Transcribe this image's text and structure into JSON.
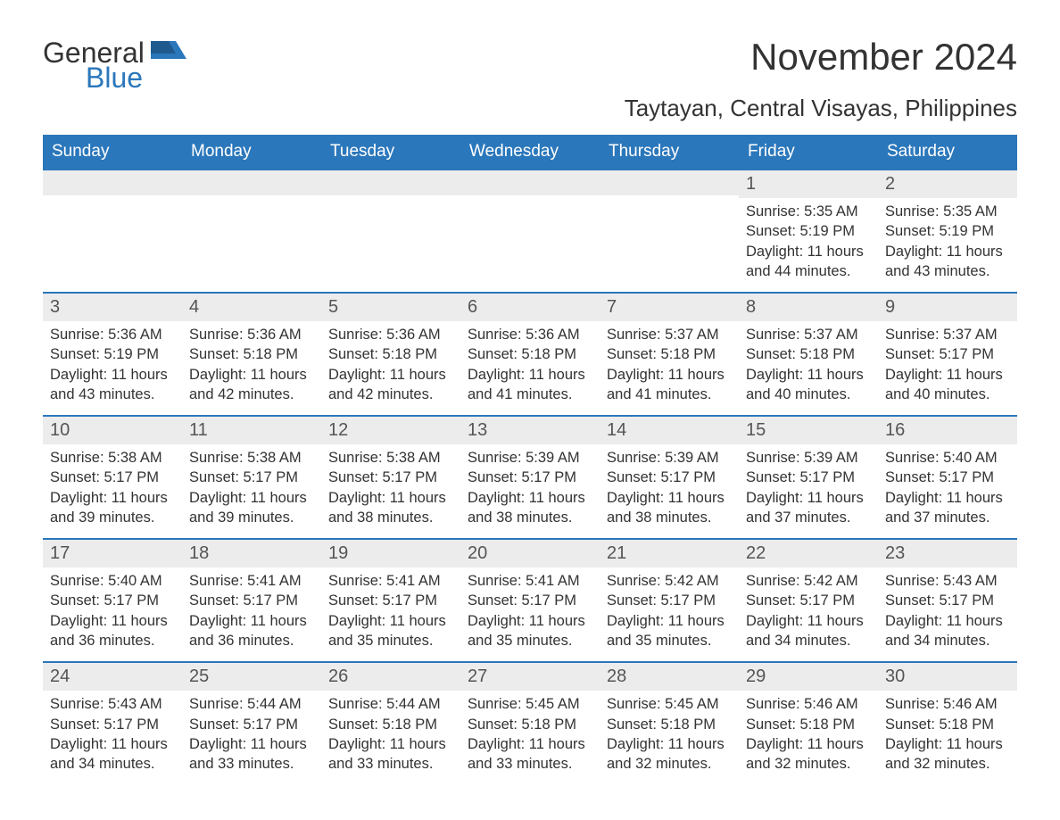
{
  "logo": {
    "general": "General",
    "blue": "Blue"
  },
  "title": "November 2024",
  "location": "Taytayan, Central Visayas, Philippines",
  "colors": {
    "header_bg": "#2b77bb",
    "header_text": "#ffffff",
    "daynum_bg": "#ececec",
    "daynum_border": "#2b77bb",
    "body_text": "#333333",
    "page_bg": "#ffffff"
  },
  "day_names": [
    "Sunday",
    "Monday",
    "Tuesday",
    "Wednesday",
    "Thursday",
    "Friday",
    "Saturday"
  ],
  "weeks": [
    [
      {
        "blank": true
      },
      {
        "blank": true
      },
      {
        "blank": true
      },
      {
        "blank": true
      },
      {
        "blank": true
      },
      {
        "num": "1",
        "sunrise": "Sunrise: 5:35 AM",
        "sunset": "Sunset: 5:19 PM",
        "daylight": "Daylight: 11 hours and 44 minutes."
      },
      {
        "num": "2",
        "sunrise": "Sunrise: 5:35 AM",
        "sunset": "Sunset: 5:19 PM",
        "daylight": "Daylight: 11 hours and 43 minutes."
      }
    ],
    [
      {
        "num": "3",
        "sunrise": "Sunrise: 5:36 AM",
        "sunset": "Sunset: 5:19 PM",
        "daylight": "Daylight: 11 hours and 43 minutes."
      },
      {
        "num": "4",
        "sunrise": "Sunrise: 5:36 AM",
        "sunset": "Sunset: 5:18 PM",
        "daylight": "Daylight: 11 hours and 42 minutes."
      },
      {
        "num": "5",
        "sunrise": "Sunrise: 5:36 AM",
        "sunset": "Sunset: 5:18 PM",
        "daylight": "Daylight: 11 hours and 42 minutes."
      },
      {
        "num": "6",
        "sunrise": "Sunrise: 5:36 AM",
        "sunset": "Sunset: 5:18 PM",
        "daylight": "Daylight: 11 hours and 41 minutes."
      },
      {
        "num": "7",
        "sunrise": "Sunrise: 5:37 AM",
        "sunset": "Sunset: 5:18 PM",
        "daylight": "Daylight: 11 hours and 41 minutes."
      },
      {
        "num": "8",
        "sunrise": "Sunrise: 5:37 AM",
        "sunset": "Sunset: 5:18 PM",
        "daylight": "Daylight: 11 hours and 40 minutes."
      },
      {
        "num": "9",
        "sunrise": "Sunrise: 5:37 AM",
        "sunset": "Sunset: 5:17 PM",
        "daylight": "Daylight: 11 hours and 40 minutes."
      }
    ],
    [
      {
        "num": "10",
        "sunrise": "Sunrise: 5:38 AM",
        "sunset": "Sunset: 5:17 PM",
        "daylight": "Daylight: 11 hours and 39 minutes."
      },
      {
        "num": "11",
        "sunrise": "Sunrise: 5:38 AM",
        "sunset": "Sunset: 5:17 PM",
        "daylight": "Daylight: 11 hours and 39 minutes."
      },
      {
        "num": "12",
        "sunrise": "Sunrise: 5:38 AM",
        "sunset": "Sunset: 5:17 PM",
        "daylight": "Daylight: 11 hours and 38 minutes."
      },
      {
        "num": "13",
        "sunrise": "Sunrise: 5:39 AM",
        "sunset": "Sunset: 5:17 PM",
        "daylight": "Daylight: 11 hours and 38 minutes."
      },
      {
        "num": "14",
        "sunrise": "Sunrise: 5:39 AM",
        "sunset": "Sunset: 5:17 PM",
        "daylight": "Daylight: 11 hours and 38 minutes."
      },
      {
        "num": "15",
        "sunrise": "Sunrise: 5:39 AM",
        "sunset": "Sunset: 5:17 PM",
        "daylight": "Daylight: 11 hours and 37 minutes."
      },
      {
        "num": "16",
        "sunrise": "Sunrise: 5:40 AM",
        "sunset": "Sunset: 5:17 PM",
        "daylight": "Daylight: 11 hours and 37 minutes."
      }
    ],
    [
      {
        "num": "17",
        "sunrise": "Sunrise: 5:40 AM",
        "sunset": "Sunset: 5:17 PM",
        "daylight": "Daylight: 11 hours and 36 minutes."
      },
      {
        "num": "18",
        "sunrise": "Sunrise: 5:41 AM",
        "sunset": "Sunset: 5:17 PM",
        "daylight": "Daylight: 11 hours and 36 minutes."
      },
      {
        "num": "19",
        "sunrise": "Sunrise: 5:41 AM",
        "sunset": "Sunset: 5:17 PM",
        "daylight": "Daylight: 11 hours and 35 minutes."
      },
      {
        "num": "20",
        "sunrise": "Sunrise: 5:41 AM",
        "sunset": "Sunset: 5:17 PM",
        "daylight": "Daylight: 11 hours and 35 minutes."
      },
      {
        "num": "21",
        "sunrise": "Sunrise: 5:42 AM",
        "sunset": "Sunset: 5:17 PM",
        "daylight": "Daylight: 11 hours and 35 minutes."
      },
      {
        "num": "22",
        "sunrise": "Sunrise: 5:42 AM",
        "sunset": "Sunset: 5:17 PM",
        "daylight": "Daylight: 11 hours and 34 minutes."
      },
      {
        "num": "23",
        "sunrise": "Sunrise: 5:43 AM",
        "sunset": "Sunset: 5:17 PM",
        "daylight": "Daylight: 11 hours and 34 minutes."
      }
    ],
    [
      {
        "num": "24",
        "sunrise": "Sunrise: 5:43 AM",
        "sunset": "Sunset: 5:17 PM",
        "daylight": "Daylight: 11 hours and 34 minutes."
      },
      {
        "num": "25",
        "sunrise": "Sunrise: 5:44 AM",
        "sunset": "Sunset: 5:17 PM",
        "daylight": "Daylight: 11 hours and 33 minutes."
      },
      {
        "num": "26",
        "sunrise": "Sunrise: 5:44 AM",
        "sunset": "Sunset: 5:18 PM",
        "daylight": "Daylight: 11 hours and 33 minutes."
      },
      {
        "num": "27",
        "sunrise": "Sunrise: 5:45 AM",
        "sunset": "Sunset: 5:18 PM",
        "daylight": "Daylight: 11 hours and 33 minutes."
      },
      {
        "num": "28",
        "sunrise": "Sunrise: 5:45 AM",
        "sunset": "Sunset: 5:18 PM",
        "daylight": "Daylight: 11 hours and 32 minutes."
      },
      {
        "num": "29",
        "sunrise": "Sunrise: 5:46 AM",
        "sunset": "Sunset: 5:18 PM",
        "daylight": "Daylight: 11 hours and 32 minutes."
      },
      {
        "num": "30",
        "sunrise": "Sunrise: 5:46 AM",
        "sunset": "Sunset: 5:18 PM",
        "daylight": "Daylight: 11 hours and 32 minutes."
      }
    ]
  ]
}
